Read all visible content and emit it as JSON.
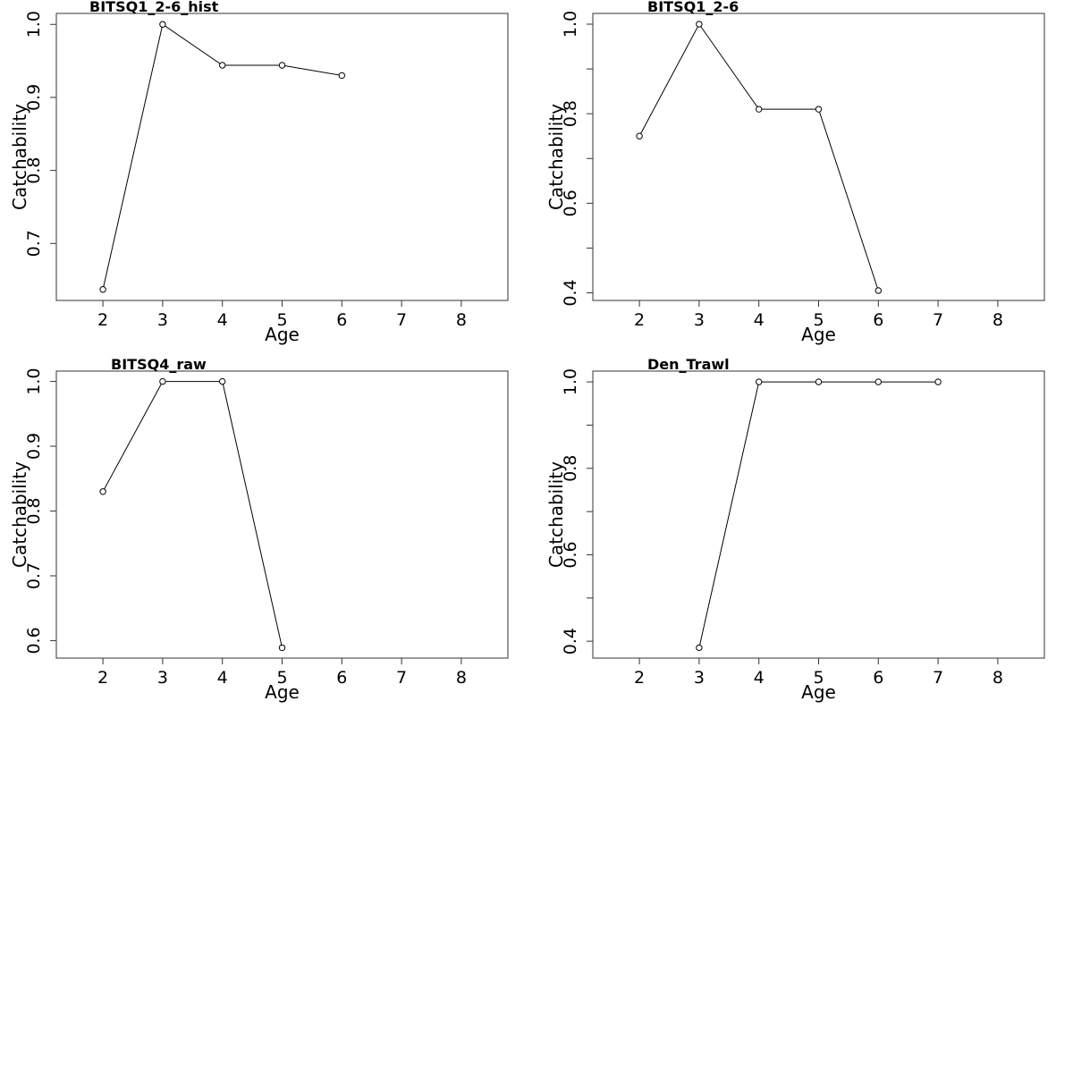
{
  "chart_data": [
    {
      "type": "line",
      "title": "BITSQ1_2-6_hist",
      "xlabel": "Age",
      "ylabel": "Catchability",
      "xlim": [
        1.22,
        8.78
      ],
      "ylim": [
        0.622,
        1.015
      ],
      "xticks": [
        2,
        3,
        4,
        5,
        6,
        7,
        8
      ],
      "yticks": [
        0.7,
        0.8,
        0.9,
        1.0
      ],
      "ytick_labels": [
        "0.7",
        "0.8",
        "0.9",
        "1.0"
      ],
      "minor_yticks": [],
      "grid": false,
      "series": [
        {
          "x": [
            2,
            3,
            4,
            5,
            6
          ],
          "y": [
            0.637,
            1.0,
            0.944,
            0.944,
            0.93
          ]
        }
      ]
    },
    {
      "type": "line",
      "title": "BITSQ1_2-6",
      "xlabel": "Age",
      "ylabel": "Catchability",
      "xlim": [
        1.22,
        8.78
      ],
      "ylim": [
        0.383,
        1.024
      ],
      "xticks": [
        2,
        3,
        4,
        5,
        6,
        7,
        8
      ],
      "yticks": [
        0.4,
        0.6,
        0.8,
        1.0
      ],
      "ytick_labels": [
        "0.4",
        "0.6",
        "0.8",
        "1.0"
      ],
      "minor_yticks": [
        0.5,
        0.7,
        0.9
      ],
      "grid": false,
      "series": [
        {
          "x": [
            2,
            3,
            4,
            5,
            6
          ],
          "y": [
            0.75,
            1.0,
            0.81,
            0.81,
            0.405
          ]
        }
      ]
    },
    {
      "type": "line",
      "title": "BITSQ4_raw",
      "xlabel": "Age",
      "ylabel": "Catchability",
      "xlim": [
        1.22,
        8.78
      ],
      "ylim": [
        0.573,
        1.016
      ],
      "xticks": [
        2,
        3,
        4,
        5,
        6,
        7,
        8
      ],
      "yticks": [
        0.6,
        0.7,
        0.8,
        0.9,
        1.0
      ],
      "ytick_labels": [
        "0.6",
        "0.7",
        "0.8",
        "0.9",
        "1.0"
      ],
      "minor_yticks": [],
      "grid": false,
      "series": [
        {
          "x": [
            2,
            3,
            4,
            5
          ],
          "y": [
            0.83,
            1.0,
            1.0,
            0.589
          ]
        }
      ]
    },
    {
      "type": "line",
      "title": "Den_Trawl",
      "xlabel": "Age",
      "ylabel": "Catchability",
      "xlim": [
        1.22,
        8.78
      ],
      "ylim": [
        0.361,
        1.025
      ],
      "xticks": [
        2,
        3,
        4,
        5,
        6,
        7,
        8
      ],
      "yticks": [
        0.4,
        0.6,
        0.8,
        1.0
      ],
      "ytick_labels": [
        "0.4",
        "0.6",
        "0.8",
        "1.0"
      ],
      "minor_yticks": [
        0.5,
        0.7,
        0.9
      ],
      "grid": false,
      "series": [
        {
          "x": [
            3,
            4,
            5,
            6,
            7
          ],
          "y": [
            0.385,
            1.0,
            1.0,
            1.0,
            1.0
          ]
        }
      ]
    }
  ]
}
